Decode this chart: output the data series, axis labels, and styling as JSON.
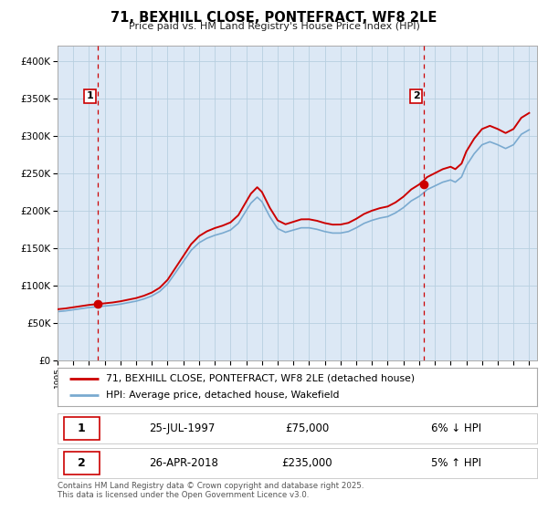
{
  "title": "71, BEXHILL CLOSE, PONTEFRACT, WF8 2LE",
  "subtitle": "Price paid vs. HM Land Registry's House Price Index (HPI)",
  "legend_line1": "71, BEXHILL CLOSE, PONTEFRACT, WF8 2LE (detached house)",
  "legend_line2": "HPI: Average price, detached house, Wakefield",
  "sale1_date": "25-JUL-1997",
  "sale1_price": "£75,000",
  "sale1_hpi": "6% ↓ HPI",
  "sale2_date": "26-APR-2018",
  "sale2_price": "£235,000",
  "sale2_hpi": "5% ↑ HPI",
  "footer": "Contains HM Land Registry data © Crown copyright and database right 2025.\nThis data is licensed under the Open Government Licence v3.0.",
  "red_line_color": "#cc0000",
  "blue_line_color": "#7aaad0",
  "dashed_line_color": "#cc0000",
  "marker_color": "#cc0000",
  "fig_bg_color": "#ffffff",
  "plot_bg_color": "#dce8f5",
  "grid_color": "#b8cfe0",
  "ylim": [
    0,
    420000
  ],
  "yticks": [
    0,
    50000,
    100000,
    150000,
    200000,
    250000,
    300000,
    350000,
    400000
  ],
  "sale1_x": 1997.55,
  "sale2_x": 2018.32,
  "sale1_y": 75000,
  "sale2_y": 235000,
  "xlim_left": 1995.0,
  "xlim_right": 2025.5
}
